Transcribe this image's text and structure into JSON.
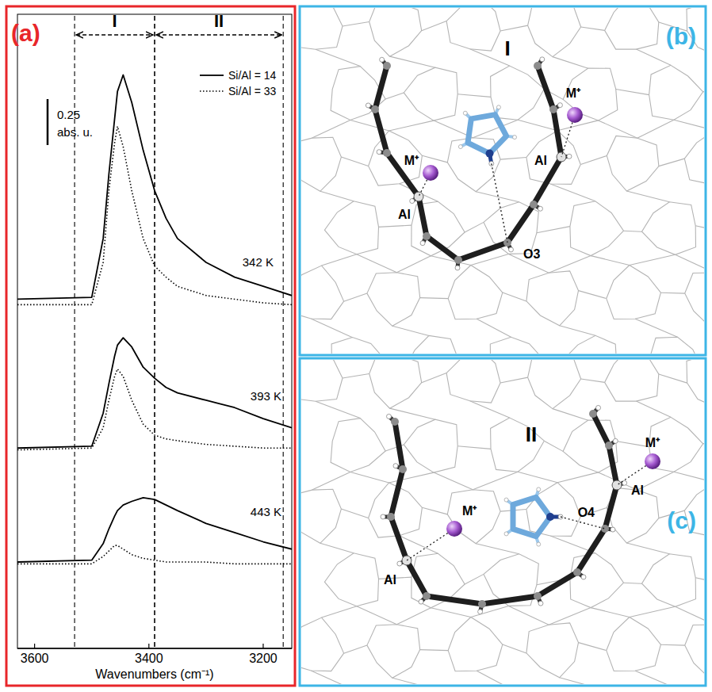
{
  "chart_data": {
    "type": "line",
    "panel_label": "(a)",
    "x_label": "Wavenumbers (cm⁻¹)",
    "x": [
      3630,
      3500,
      3480,
      3470,
      3460,
      3455,
      3445,
      3430,
      3410,
      3390,
      3370,
      3350,
      3300,
      3250,
      3200,
      3150
    ],
    "xlim": [
      3630,
      3150
    ],
    "xticks": [
      3600,
      3400,
      3200
    ],
    "ylim": [
      0,
      3.45
    ],
    "tick_labels": "x",
    "legend": "upper right",
    "series": [
      {
        "name": "Si/Al = 14",
        "color": "#000000",
        "line_style": "solid",
        "values": [
          1.9,
          1.91,
          2.23,
          2.58,
          2.88,
          3.03,
          3.12,
          2.97,
          2.71,
          2.49,
          2.34,
          2.23,
          2.1,
          2.02,
          1.97,
          1.92
        ]
      },
      {
        "name": "Si/Al = 33",
        "color": "#000000",
        "line_style": "dotted",
        "values": [
          1.87,
          1.87,
          2.1,
          2.49,
          2.75,
          2.84,
          2.73,
          2.49,
          2.23,
          2.08,
          2.02,
          1.97,
          1.92,
          1.9,
          1.88,
          1.87
        ]
      },
      {
        "name": "Si/Al = 14",
        "color": "#000000",
        "line_style": "solid",
        "values": [
          1.09,
          1.1,
          1.28,
          1.44,
          1.59,
          1.65,
          1.69,
          1.64,
          1.53,
          1.47,
          1.42,
          1.39,
          1.35,
          1.31,
          1.25,
          1.2
        ]
      },
      {
        "name": "Si/Al = 33",
        "color": "#000000",
        "line_style": "dotted",
        "values": [
          1.08,
          1.09,
          1.2,
          1.35,
          1.48,
          1.52,
          1.48,
          1.35,
          1.22,
          1.16,
          1.14,
          1.13,
          1.11,
          1.1,
          1.09,
          1.09
        ]
      },
      {
        "name": "Si/Al = 14",
        "color": "#000000",
        "line_style": "solid",
        "values": [
          0.47,
          0.48,
          0.57,
          0.65,
          0.72,
          0.75,
          0.78,
          0.8,
          0.82,
          0.81,
          0.78,
          0.75,
          0.68,
          0.63,
          0.58,
          0.54
        ]
      },
      {
        "name": "Si/Al = 33",
        "color": "#000000",
        "line_style": "dotted",
        "values": [
          0.46,
          0.46,
          0.5,
          0.53,
          0.56,
          0.56,
          0.54,
          0.51,
          0.49,
          0.48,
          0.47,
          0.47,
          0.47,
          0.46,
          0.46,
          0.46
        ]
      }
    ],
    "annotations": [
      {
        "text": "342 K",
        "x": 3182,
        "y": 2.08
      },
      {
        "text": "393 K",
        "x": 3168,
        "y": 1.35
      },
      {
        "text": "443 K",
        "x": 3168,
        "y": 0.72
      }
    ],
    "regions": [
      {
        "label": "I",
        "from": 3530,
        "to": 3390
      },
      {
        "label": "II",
        "from": 3390,
        "to": 3165
      }
    ],
    "scale_bar": {
      "value": 0.25,
      "labels": [
        "0.25",
        "abs. u."
      ]
    }
  },
  "diagrams": [
    {
      "panel_label": "(b)",
      "labels": [
        "I",
        "M⁺",
        "M⁺",
        "Al",
        "Al",
        "O3"
      ]
    },
    {
      "panel_label": "(c)",
      "labels": [
        "II",
        "M⁺",
        "M⁺",
        "Al",
        "Al",
        "O4"
      ]
    }
  ]
}
